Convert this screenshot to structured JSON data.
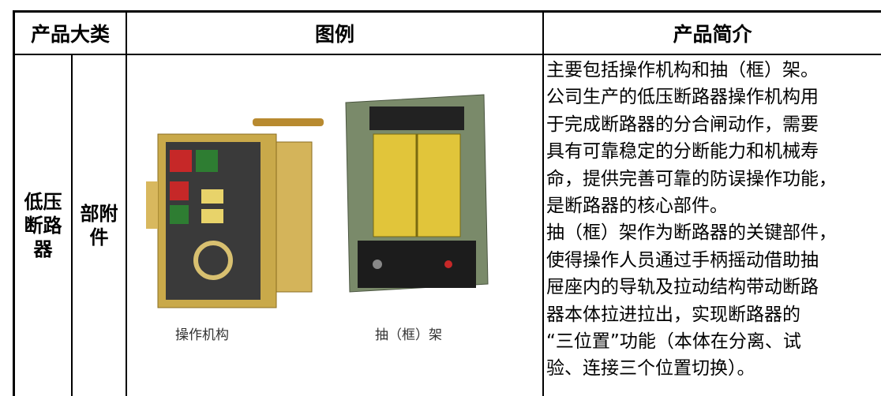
{
  "table": {
    "header": [
      "产品大类",
      "图例",
      "产品简介"
    ],
    "rows": [
      {
        "category": "低压断路器",
        "subcategory": "部附件",
        "captions": [
          "操作机构",
          "抽（框）架"
        ],
        "description": [
          "主要包括操作机构和抽（框）架。",
          "公司生产的低压断路器操作机构用",
          "于完成断路器的分合闸动作，需要",
          "具有可靠稳定的分断能力和机械寿",
          "命，提供完善可靠的防误操作功能，",
          "是断路器的核心部件。",
          "抽（框）架作为断路器的关键部件，",
          "使得操作人员通过手柄摇动借助抽",
          "屉座内的导轨及拉动结构带动断路",
          "器本体拉进拉出，实现断路器的",
          "“三位置”功能（本体在分离、试",
          "验、连接三个位置切换）。"
        ]
      }
    ]
  }
}
